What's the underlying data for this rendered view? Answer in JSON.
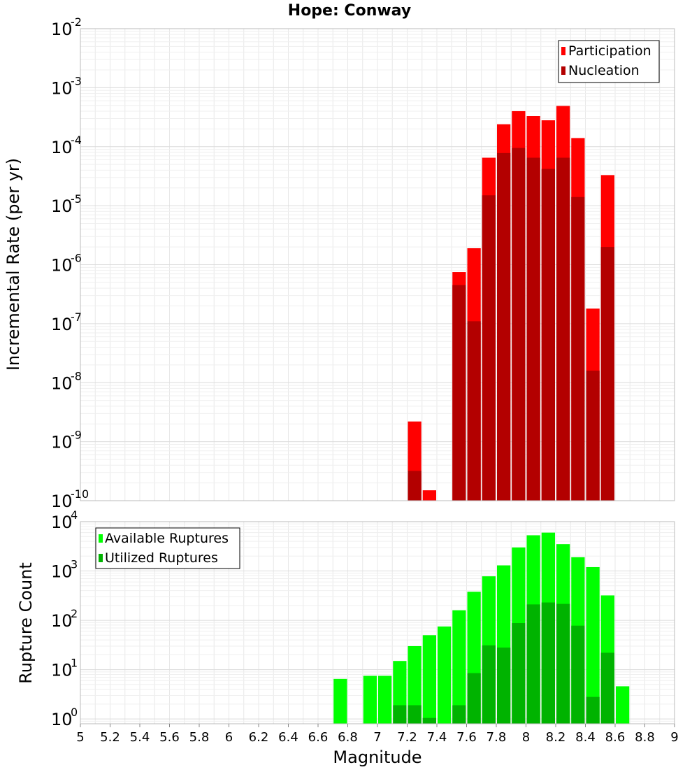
{
  "title": "Hope: Conway",
  "colors": {
    "participation": "#ff0000",
    "nucleation": "#b30000",
    "available": "#00ff00",
    "utilized": "#00b300",
    "grid": "#e8e8e8",
    "frame": "#bbbbbb"
  },
  "chart_data": [
    {
      "type": "bar",
      "title": "Hope: Conway",
      "xlabel": "Magnitude",
      "ylabel": "Incremental Rate (per yr)",
      "yscale": "log",
      "xlim": [
        5,
        9
      ],
      "ylim": [
        1e-10,
        0.01
      ],
      "bin_width": 0.1,
      "grid": true,
      "legend_position": "top-right",
      "y_ticks": [
        {
          "base": "10",
          "exp": "-10"
        },
        {
          "base": "10",
          "exp": "-9"
        },
        {
          "base": "10",
          "exp": "-8"
        },
        {
          "base": "10",
          "exp": "-7"
        },
        {
          "base": "10",
          "exp": "-6"
        },
        {
          "base": "10",
          "exp": "-5"
        },
        {
          "base": "10",
          "exp": "-4"
        },
        {
          "base": "10",
          "exp": "-3"
        },
        {
          "base": "10",
          "exp": "-2"
        }
      ],
      "series": [
        {
          "name": "Participation",
          "color": "#ff0000",
          "x": [
            7.25,
            7.35,
            7.55,
            7.65,
            7.75,
            7.85,
            7.95,
            8.05,
            8.15,
            8.25,
            8.35,
            8.45,
            8.55
          ],
          "values": [
            2.2e-09,
            1.5e-10,
            7.5e-07,
            1.9e-06,
            6.5e-05,
            0.00024,
            0.0004,
            0.00033,
            0.00028,
            0.00049,
            0.00014,
            1.8e-07,
            3.3e-05
          ]
        },
        {
          "name": "Nucleation",
          "color": "#b30000",
          "x": [
            7.25,
            7.55,
            7.65,
            7.75,
            7.85,
            7.95,
            8.05,
            8.15,
            8.25,
            8.35,
            8.45,
            8.55
          ],
          "values": [
            3.2e-10,
            4.5e-07,
            1.1e-07,
            1.5e-05,
            7.8e-05,
            9.5e-05,
            6.5e-05,
            4.2e-05,
            6.5e-05,
            1.4e-05,
            1.6e-08,
            2e-06
          ]
        }
      ]
    },
    {
      "type": "bar",
      "xlabel": "Magnitude",
      "ylabel": "Rupture Count",
      "yscale": "log",
      "xlim": [
        5,
        9
      ],
      "ylim": [
        0.8,
        10000
      ],
      "bin_width": 0.1,
      "grid": true,
      "legend_position": "top-left",
      "x_ticks": [
        "5",
        "5.2",
        "5.4",
        "5.6",
        "5.8",
        "6",
        "6.2",
        "6.4",
        "6.6",
        "6.8",
        "7",
        "7.2",
        "7.4",
        "7.6",
        "7.8",
        "8",
        "8.2",
        "8.4",
        "8.6",
        "8.8",
        "9"
      ],
      "y_ticks": [
        {
          "base": "10",
          "exp": "0"
        },
        {
          "base": "10",
          "exp": "1"
        },
        {
          "base": "10",
          "exp": "2"
        },
        {
          "base": "10",
          "exp": "3"
        },
        {
          "base": "10",
          "exp": "4"
        }
      ],
      "series": [
        {
          "name": "Available Ruptures",
          "color": "#00ff00",
          "x": [
            6.75,
            6.95,
            7.05,
            7.15,
            7.25,
            7.35,
            7.45,
            7.55,
            7.65,
            7.75,
            7.85,
            7.95,
            8.05,
            8.15,
            8.25,
            8.35,
            8.45,
            8.55,
            8.65
          ],
          "values": [
            6.5,
            7.5,
            7.5,
            15,
            30,
            50,
            75,
            160,
            380,
            780,
            1300,
            3000,
            5300,
            6000,
            3500,
            1900,
            1200,
            320,
            4.6
          ]
        },
        {
          "name": "Utilized Ruptures",
          "color": "#00b300",
          "x": [
            7.15,
            7.25,
            7.35,
            7.55,
            7.65,
            7.75,
            7.85,
            7.95,
            8.05,
            8.15,
            8.25,
            8.35,
            8.45,
            8.55
          ],
          "values": [
            1.9,
            1.9,
            1.05,
            1.9,
            8.5,
            31,
            28,
            88,
            210,
            230,
            215,
            78,
            2.8,
            22
          ]
        }
      ]
    }
  ]
}
